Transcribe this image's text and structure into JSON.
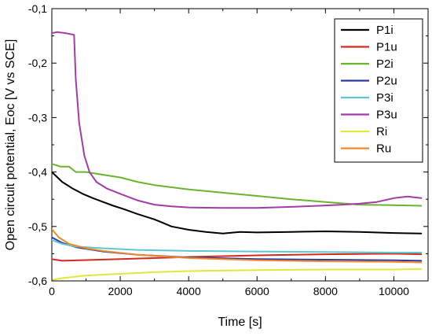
{
  "chart_data": {
    "type": "line",
    "title": "",
    "xlabel": "Time [s]",
    "ylabel": "Open circuit potential, Eoc [V vs SCE]",
    "xlim": [
      0,
      11000
    ],
    "ylim": [
      -0.6,
      -0.1
    ],
    "xticks": [
      0,
      2000,
      4000,
      6000,
      8000,
      10000
    ],
    "yticks": [
      -0.6,
      -0.5,
      -0.4,
      -0.3,
      -0.2,
      -0.1
    ],
    "xtick_labels": [
      "0",
      "2000",
      "4000",
      "6000",
      "8000",
      "10000"
    ],
    "ytick_labels": [
      "-0,6",
      "-0,5",
      "-0,4",
      "-0,3",
      "-0,2",
      "-0,1"
    ],
    "grid": false,
    "legend_position": "top-right",
    "series": [
      {
        "name": "P1i",
        "color": "#000000",
        "x": [
          0,
          300,
          600,
          900,
          1200,
          1500,
          1800,
          2100,
          2500,
          3000,
          3200,
          3500,
          4000,
          4500,
          5000,
          5500,
          6000,
          7000,
          8000,
          9000,
          10000,
          10800
        ],
        "y": [
          -0.4,
          -0.418,
          -0.43,
          -0.44,
          -0.448,
          -0.455,
          -0.462,
          -0.468,
          -0.477,
          -0.487,
          -0.492,
          -0.5,
          -0.506,
          -0.51,
          -0.513,
          -0.51,
          -0.511,
          -0.51,
          -0.509,
          -0.51,
          -0.512,
          -0.513
        ]
      },
      {
        "name": "P1u",
        "color": "#d42a1e",
        "x": [
          0,
          300,
          800,
          2000,
          4000,
          6000,
          8000,
          10000,
          10800
        ],
        "y": [
          -0.56,
          -0.563,
          -0.562,
          -0.56,
          -0.556,
          -0.553,
          -0.551,
          -0.55,
          -0.551
        ]
      },
      {
        "name": "P2i",
        "color": "#6ab42d",
        "x": [
          0,
          250,
          500,
          700,
          1000,
          1500,
          2000,
          2500,
          3000,
          4000,
          5000,
          6000,
          7000,
          8000,
          9000,
          10000,
          10800
        ],
        "y": [
          -0.385,
          -0.39,
          -0.39,
          -0.4,
          -0.4,
          -0.405,
          -0.41,
          -0.418,
          -0.424,
          -0.432,
          -0.438,
          -0.444,
          -0.45,
          -0.455,
          -0.46,
          -0.461,
          -0.462
        ]
      },
      {
        "name": "P2u",
        "color": "#2a3aa0",
        "x": [
          0,
          300,
          700,
          1500,
          2500,
          4000,
          6000,
          8000,
          10000,
          10800
        ],
        "y": [
          -0.52,
          -0.53,
          -0.538,
          -0.546,
          -0.552,
          -0.557,
          -0.56,
          -0.561,
          -0.562,
          -0.563
        ]
      },
      {
        "name": "P3i",
        "color": "#5bc8d2",
        "x": [
          0,
          300,
          700,
          1500,
          2500,
          4000,
          6000,
          8000,
          10000,
          10800
        ],
        "y": [
          -0.525,
          -0.532,
          -0.537,
          -0.54,
          -0.543,
          -0.545,
          -0.546,
          -0.547,
          -0.548,
          -0.548
        ]
      },
      {
        "name": "P3u",
        "color": "#a23ca6",
        "x": [
          0,
          150,
          400,
          650,
          700,
          800,
          950,
          1100,
          1300,
          1600,
          2000,
          2500,
          3000,
          3500,
          4000,
          5000,
          6000,
          7000,
          7800,
          8500,
          9000,
          9500,
          10000,
          10400,
          10800
        ],
        "y": [
          -0.145,
          -0.143,
          -0.145,
          -0.148,
          -0.23,
          -0.31,
          -0.37,
          -0.4,
          -0.418,
          -0.43,
          -0.44,
          -0.452,
          -0.46,
          -0.463,
          -0.465,
          -0.466,
          -0.466,
          -0.464,
          -0.462,
          -0.46,
          -0.458,
          -0.455,
          -0.448,
          -0.445,
          -0.448
        ]
      },
      {
        "name": "Ri",
        "color": "#e2e83a",
        "x": [
          0,
          300,
          1000,
          2000,
          3000,
          4000,
          6000,
          8000,
          10000,
          10800
        ],
        "y": [
          -0.598,
          -0.595,
          -0.59,
          -0.587,
          -0.584,
          -0.582,
          -0.58,
          -0.579,
          -0.579,
          -0.578
        ]
      },
      {
        "name": "Ru",
        "color": "#f08a2c",
        "x": [
          0,
          200,
          500,
          1000,
          1500,
          2500,
          4000,
          6000,
          8000,
          10000,
          10800
        ],
        "y": [
          -0.505,
          -0.52,
          -0.532,
          -0.54,
          -0.545,
          -0.552,
          -0.558,
          -0.562,
          -0.564,
          -0.565,
          -0.566
        ]
      }
    ]
  }
}
